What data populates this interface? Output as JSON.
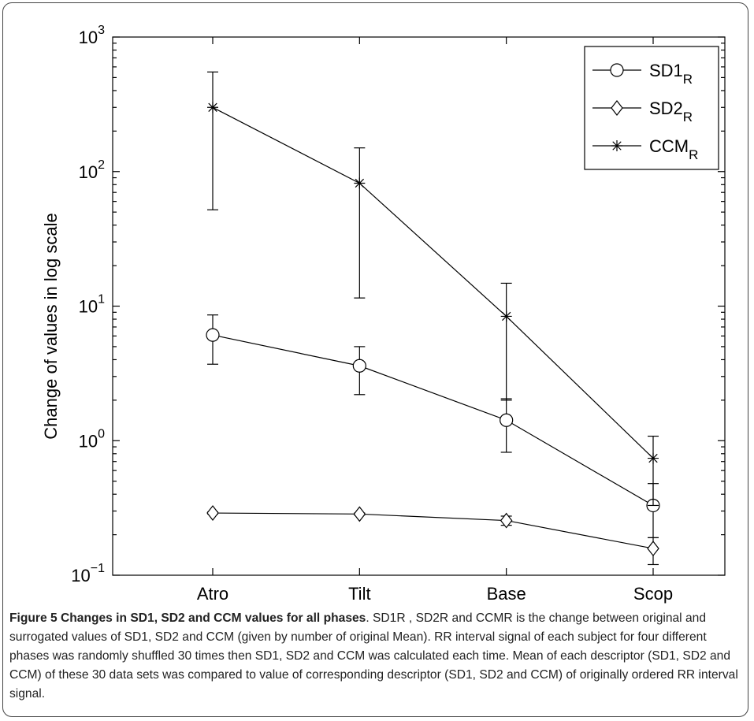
{
  "chart_data": {
    "type": "line",
    "ylabel": "Change of values in log scale",
    "yscale": "log",
    "ylim": [
      0.1,
      1000
    ],
    "yticks": [
      {
        "value": 0.1,
        "base": "10",
        "exp": "−1"
      },
      {
        "value": 1,
        "base": "10",
        "exp": "0"
      },
      {
        "value": 10,
        "base": "10",
        "exp": "1"
      },
      {
        "value": 100,
        "base": "10",
        "exp": "2"
      },
      {
        "value": 1000,
        "base": "10",
        "exp": "3"
      }
    ],
    "categories": [
      "Atro",
      "Tilt",
      "Base",
      "Scop"
    ],
    "series": [
      {
        "name": "SD1",
        "sub": "R",
        "marker": "circle",
        "values": [
          6.1,
          3.6,
          1.42,
          0.33
        ],
        "err_low": [
          3.7,
          2.2,
          0.82,
          0.19
        ],
        "err_high": [
          8.6,
          5.0,
          2.05,
          0.48
        ]
      },
      {
        "name": "SD2",
        "sub": "R",
        "marker": "diamond",
        "values": [
          0.29,
          0.285,
          0.255,
          0.158
        ],
        "err_low": [
          0.285,
          0.28,
          0.235,
          0.12
        ],
        "err_high": [
          0.295,
          0.29,
          0.275,
          0.19
        ]
      },
      {
        "name": "CCM",
        "sub": "R",
        "marker": "star",
        "values": [
          300,
          82,
          8.4,
          0.74
        ],
        "err_low": [
          52,
          11.5,
          2.0,
          0.33
        ],
        "err_high": [
          550,
          150,
          14.8,
          1.08
        ]
      }
    ],
    "legend": "top-right",
    "grid": false
  },
  "caption": {
    "title": "Figure 5 Changes in SD1, SD2 and CCM values for all phases",
    "body": ". SD1R , SD2R and CCMR is the change between original and surrogated values of SD1, SD2 and CCM (given by number of original Mean). RR interval signal of each subject for four different phases was randomly shuffled 30 times then SD1, SD2 and CCM was calculated each time. Mean of each descriptor (SD1, SD2 and CCM) of these 30 data sets was compared to value of corresponding descriptor (SD1, SD2 and CCM) of originally ordered RR interval signal."
  }
}
